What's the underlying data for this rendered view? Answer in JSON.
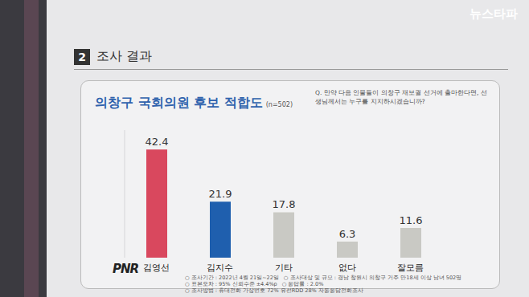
{
  "section": {
    "number": "2",
    "title": "조사 결과"
  },
  "source": "뉴스타파",
  "logo": "PNR",
  "footer": [
    "○ 조사기간 : 2022년 4월 21일~22일",
    "○ 조사대상 및 규모 : 경남 창원시 의창구 거주 만18세 이상 남녀 502명",
    "○ 표본오차 : 95% 신뢰수준 ±4.4%p",
    "○ 응답률 : 2.0%",
    "○ 조사방법 : 휴대전화 가상번호 72% 유선RDD 28% 자동응답전화조사"
  ],
  "chart_data": {
    "type": "bar",
    "title": "의창구 국회의원 후보 적합도",
    "annotations": [
      "(n=502)"
    ],
    "subtitle": "Q. 만약 다음 인물들이 의창구 재보궐 선거에 출마한다면, 선생님께서는 누구를 지지하시겠습니까?",
    "categories": [
      "김영선",
      "김지수",
      "기타",
      "없다",
      "잘모름"
    ],
    "values": [
      42.4,
      21.9,
      17.8,
      6.3,
      11.6
    ],
    "colors": [
      "#d9485e",
      "#1f5fae",
      "#c9c9c4",
      "#c9c9c4",
      "#c9c9c4"
    ],
    "ylim": [
      0,
      50
    ],
    "data_labels": true,
    "tick_labels": "x",
    "grid": false
  }
}
